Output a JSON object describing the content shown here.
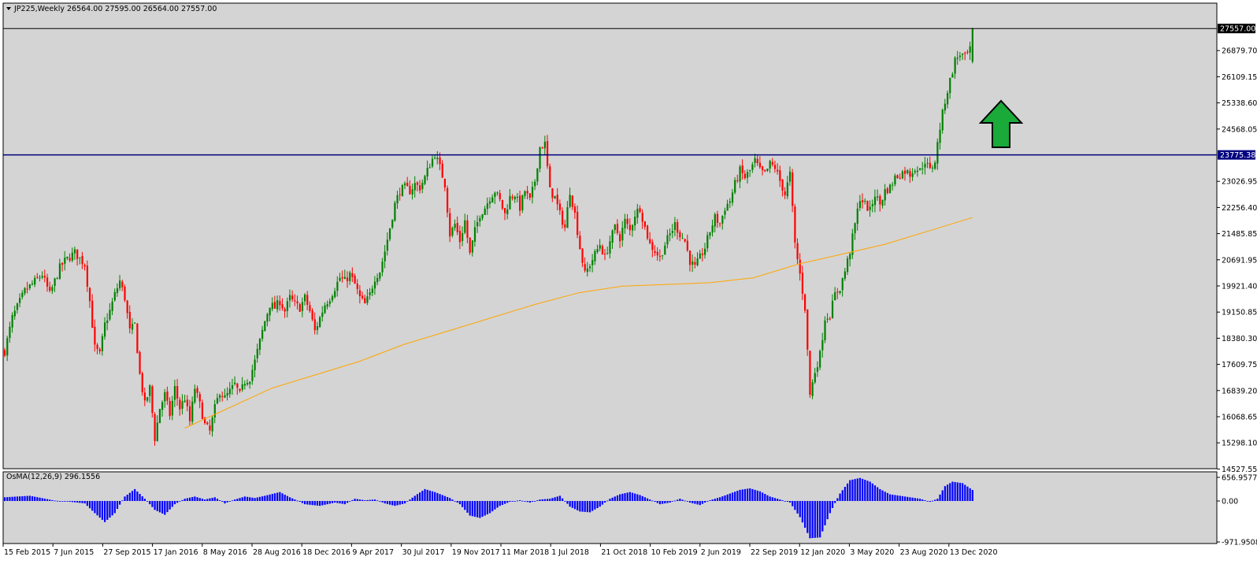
{
  "header": {
    "symbol_line": "JP225,Weekly  26564.00 27595.00 26564.00 27557.00"
  },
  "colors": {
    "background": "#d4d4d4",
    "bull": "#008000",
    "bear": "#ff0000",
    "ma": "#ffa500",
    "resistance_line": "#000080",
    "osma_bars": "#0000ff",
    "arrow": "#1aaa3a"
  },
  "arrow": {
    "icon": "up-arrow-icon",
    "direction": "up"
  },
  "chart_data": [
    {
      "type": "candlestick",
      "title": "JP225,Weekly",
      "ohlc_last": {
        "open": 26564.0,
        "high": 27595.0,
        "low": 26564.0,
        "close": 27557.0
      },
      "price_range": [
        14527.55,
        27750
      ],
      "y_tick_labels": [
        "27557.00",
        "26879.70",
        "26109.15",
        "25338.60",
        "24568.05",
        "23775.38",
        "23026.95",
        "22256.40",
        "21485.85",
        "20691.95",
        "19921.40",
        "19150.85",
        "18380.30",
        "17609.75",
        "16839.20",
        "16068.65",
        "15298.10",
        "14527.55"
      ],
      "current_price_label": "27557.00",
      "horizontal_line": {
        "value": 23775.38,
        "label": "23775.38"
      },
      "x_tick_labels": [
        "15 Feb 2015",
        "7 Jun 2015",
        "27 Sep 2015",
        "17 Jan 2016",
        "8 May 2016",
        "28 Aug 2016",
        "18 Dec 2016",
        "9 Apr 2017",
        "30 Jul 2017",
        "19 Nov 2017",
        "11 Mar 2018",
        "1 Jul 2018",
        "21 Oct 2018",
        "10 Feb 2019",
        "2 Jun 2019",
        "22 Sep 2019",
        "12 Jan 2020",
        "3 May 2020",
        "23 Aug 2020",
        "13 Dec 2020"
      ],
      "close_path": [
        [
          0,
          17900
        ],
        [
          3,
          18900
        ],
        [
          8,
          19700
        ],
        [
          15,
          20200
        ],
        [
          18,
          19600
        ],
        [
          22,
          20400
        ],
        [
          24,
          20600
        ],
        [
          28,
          20850
        ],
        [
          32,
          20500
        ],
        [
          34,
          19400
        ],
        [
          36,
          18000
        ],
        [
          38,
          17800
        ],
        [
          40,
          18700
        ],
        [
          42,
          19100
        ],
        [
          44,
          19600
        ],
        [
          46,
          20000
        ],
        [
          48,
          19500
        ],
        [
          50,
          18500
        ],
        [
          52,
          18700
        ],
        [
          54,
          17200
        ],
        [
          56,
          16300
        ],
        [
          58,
          16800
        ],
        [
          60,
          15300
        ],
        [
          62,
          16200
        ],
        [
          64,
          16600
        ],
        [
          66,
          16000
        ],
        [
          68,
          16800
        ],
        [
          70,
          16200
        ],
        [
          72,
          16500
        ],
        [
          74,
          15800
        ],
        [
          76,
          16800
        ],
        [
          78,
          16300
        ],
        [
          80,
          15700
        ],
        [
          82,
          15500
        ],
        [
          84,
          16200
        ],
        [
          86,
          16700
        ],
        [
          88,
          16500
        ],
        [
          90,
          16700
        ],
        [
          92,
          16900
        ],
        [
          94,
          16600
        ],
        [
          96,
          17000
        ],
        [
          98,
          17100
        ],
        [
          100,
          17600
        ],
        [
          102,
          18200
        ],
        [
          104,
          18800
        ],
        [
          106,
          19300
        ],
        [
          108,
          19200
        ],
        [
          110,
          19400
        ],
        [
          112,
          19100
        ],
        [
          114,
          19500
        ],
        [
          116,
          19300
        ],
        [
          118,
          19200
        ],
        [
          120,
          19500
        ],
        [
          122,
          19100
        ],
        [
          124,
          18500
        ],
        [
          126,
          18900
        ],
        [
          128,
          19300
        ],
        [
          130,
          19500
        ],
        [
          132,
          19800
        ],
        [
          134,
          20100
        ],
        [
          136,
          20000
        ],
        [
          138,
          20200
        ],
        [
          140,
          19900
        ],
        [
          142,
          19500
        ],
        [
          144,
          19300
        ],
        [
          146,
          19600
        ],
        [
          148,
          20100
        ],
        [
          150,
          20300
        ],
        [
          152,
          20900
        ],
        [
          154,
          21600
        ],
        [
          156,
          22300
        ],
        [
          158,
          22700
        ],
        [
          160,
          22800
        ],
        [
          162,
          22700
        ],
        [
          164,
          22900
        ],
        [
          166,
          22800
        ],
        [
          168,
          23100
        ],
        [
          170,
          23500
        ],
        [
          172,
          23800
        ],
        [
          174,
          23400
        ],
        [
          176,
          22900
        ],
        [
          178,
          21400
        ],
        [
          180,
          21700
        ],
        [
          182,
          21200
        ],
        [
          184,
          21800
        ],
        [
          186,
          20800
        ],
        [
          188,
          21500
        ],
        [
          190,
          22000
        ],
        [
          192,
          22200
        ],
        [
          194,
          22500
        ],
        [
          196,
          22700
        ],
        [
          198,
          22400
        ],
        [
          200,
          22000
        ],
        [
          202,
          22500
        ],
        [
          204,
          22600
        ],
        [
          206,
          22200
        ],
        [
          208,
          22700
        ],
        [
          210,
          22400
        ],
        [
          212,
          23000
        ],
        [
          214,
          24000
        ],
        [
          216,
          24100
        ],
        [
          218,
          22700
        ],
        [
          220,
          22500
        ],
        [
          222,
          22000
        ],
        [
          224,
          21600
        ],
        [
          226,
          22700
        ],
        [
          228,
          22000
        ],
        [
          230,
          21000
        ],
        [
          232,
          20200
        ],
        [
          234,
          20500
        ],
        [
          236,
          20800
        ],
        [
          238,
          21100
        ],
        [
          240,
          20700
        ],
        [
          242,
          21200
        ],
        [
          244,
          21600
        ],
        [
          246,
          21300
        ],
        [
          248,
          21800
        ],
        [
          250,
          21500
        ],
        [
          252,
          22000
        ],
        [
          254,
          22200
        ],
        [
          256,
          21600
        ],
        [
          258,
          21100
        ],
        [
          260,
          20900
        ],
        [
          262,
          20700
        ],
        [
          264,
          21100
        ],
        [
          266,
          21400
        ],
        [
          268,
          21700
        ],
        [
          270,
          21400
        ],
        [
          272,
          21200
        ],
        [
          274,
          20600
        ],
        [
          276,
          20400
        ],
        [
          278,
          20700
        ],
        [
          280,
          21000
        ],
        [
          282,
          21500
        ],
        [
          284,
          21900
        ],
        [
          286,
          21700
        ],
        [
          288,
          22200
        ],
        [
          290,
          22400
        ],
        [
          292,
          22900
        ],
        [
          294,
          23300
        ],
        [
          296,
          23100
        ],
        [
          298,
          23300
        ],
        [
          300,
          23600
        ],
        [
          302,
          23300
        ],
        [
          304,
          23200
        ],
        [
          306,
          23500
        ],
        [
          308,
          23400
        ],
        [
          310,
          23000
        ],
        [
          312,
          22600
        ],
        [
          314,
          23200
        ],
        [
          316,
          21100
        ],
        [
          318,
          20200
        ],
        [
          320,
          19200
        ],
        [
          322,
          16600
        ],
        [
          324,
          17300
        ],
        [
          326,
          17800
        ],
        [
          328,
          18900
        ],
        [
          330,
          19000
        ],
        [
          332,
          19600
        ],
        [
          334,
          19800
        ],
        [
          336,
          20300
        ],
        [
          338,
          20900
        ],
        [
          340,
          21700
        ],
        [
          342,
          22500
        ],
        [
          344,
          22300
        ],
        [
          346,
          22100
        ],
        [
          348,
          22600
        ],
        [
          350,
          22300
        ],
        [
          352,
          22700
        ],
        [
          354,
          22800
        ],
        [
          356,
          23100
        ],
        [
          358,
          23200
        ],
        [
          360,
          23300
        ],
        [
          362,
          23200
        ],
        [
          364,
          23400
        ],
        [
          366,
          23300
        ],
        [
          368,
          23600
        ],
        [
          370,
          23300
        ],
        [
          372,
          23600
        ],
        [
          374,
          24600
        ],
        [
          376,
          25400
        ],
        [
          378,
          26000
        ],
        [
          380,
          26600
        ],
        [
          382,
          26800
        ],
        [
          384,
          26700
        ],
        [
          386,
          26900
        ],
        [
          387,
          27557
        ]
      ],
      "ma": {
        "from_week": 72,
        "to_week": 387,
        "values": [
          15600,
          16200,
          16800,
          17200,
          17600,
          18100,
          18500,
          18900,
          19300,
          19650,
          19850,
          19900,
          19950,
          20100,
          20500,
          20800,
          21100,
          21500,
          21900
        ]
      }
    },
    {
      "type": "histogram",
      "title": "OsMA(12,26,9) 296.1556",
      "y_tick_labels": [
        "656.9577",
        "0.00",
        "-971.9508"
      ],
      "ylim": [
        -971.9508,
        656.9577
      ],
      "weeks": 388,
      "keyframes": [
        [
          0,
          100
        ],
        [
          10,
          140
        ],
        [
          14,
          90
        ],
        [
          20,
          10
        ],
        [
          26,
          -20
        ],
        [
          32,
          -60
        ],
        [
          36,
          -300
        ],
        [
          40,
          -520
        ],
        [
          44,
          -300
        ],
        [
          48,
          120
        ],
        [
          52,
          320
        ],
        [
          56,
          60
        ],
        [
          60,
          -220
        ],
        [
          64,
          -340
        ],
        [
          68,
          -80
        ],
        [
          72,
          60
        ],
        [
          76,
          120
        ],
        [
          80,
          40
        ],
        [
          84,
          100
        ],
        [
          88,
          -60
        ],
        [
          92,
          40
        ],
        [
          96,
          120
        ],
        [
          100,
          80
        ],
        [
          104,
          140
        ],
        [
          110,
          240
        ],
        [
          114,
          100
        ],
        [
          120,
          -80
        ],
        [
          126,
          -120
        ],
        [
          132,
          -40
        ],
        [
          136,
          -80
        ],
        [
          140,
          60
        ],
        [
          144,
          20
        ],
        [
          148,
          40
        ],
        [
          152,
          -60
        ],
        [
          156,
          -120
        ],
        [
          160,
          -60
        ],
        [
          164,
          140
        ],
        [
          168,
          320
        ],
        [
          172,
          240
        ],
        [
          178,
          80
        ],
        [
          182,
          -80
        ],
        [
          186,
          -360
        ],
        [
          190,
          -420
        ],
        [
          194,
          -300
        ],
        [
          198,
          -120
        ],
        [
          202,
          -20
        ],
        [
          206,
          20
        ],
        [
          210,
          -40
        ],
        [
          214,
          40
        ],
        [
          218,
          60
        ],
        [
          222,
          140
        ],
        [
          226,
          -140
        ],
        [
          230,
          -260
        ],
        [
          234,
          -280
        ],
        [
          238,
          -140
        ],
        [
          242,
          60
        ],
        [
          246,
          180
        ],
        [
          250,
          240
        ],
        [
          254,
          160
        ],
        [
          258,
          40
        ],
        [
          262,
          -80
        ],
        [
          266,
          -40
        ],
        [
          270,
          60
        ],
        [
          274,
          -40
        ],
        [
          278,
          -100
        ],
        [
          282,
          20
        ],
        [
          286,
          100
        ],
        [
          290,
          200
        ],
        [
          294,
          300
        ],
        [
          298,
          340
        ],
        [
          302,
          260
        ],
        [
          306,
          120
        ],
        [
          310,
          40
        ],
        [
          314,
          -40
        ],
        [
          318,
          -400
        ],
        [
          322,
          -920
        ],
        [
          326,
          -900
        ],
        [
          330,
          -300
        ],
        [
          334,
          200
        ],
        [
          338,
          560
        ],
        [
          342,
          620
        ],
        [
          346,
          520
        ],
        [
          350,
          320
        ],
        [
          354,
          180
        ],
        [
          358,
          140
        ],
        [
          362,
          100
        ],
        [
          366,
          60
        ],
        [
          370,
          -20
        ],
        [
          373,
          60
        ],
        [
          376,
          400
        ],
        [
          379,
          520
        ],
        [
          383,
          480
        ],
        [
          387,
          296
        ]
      ]
    }
  ]
}
